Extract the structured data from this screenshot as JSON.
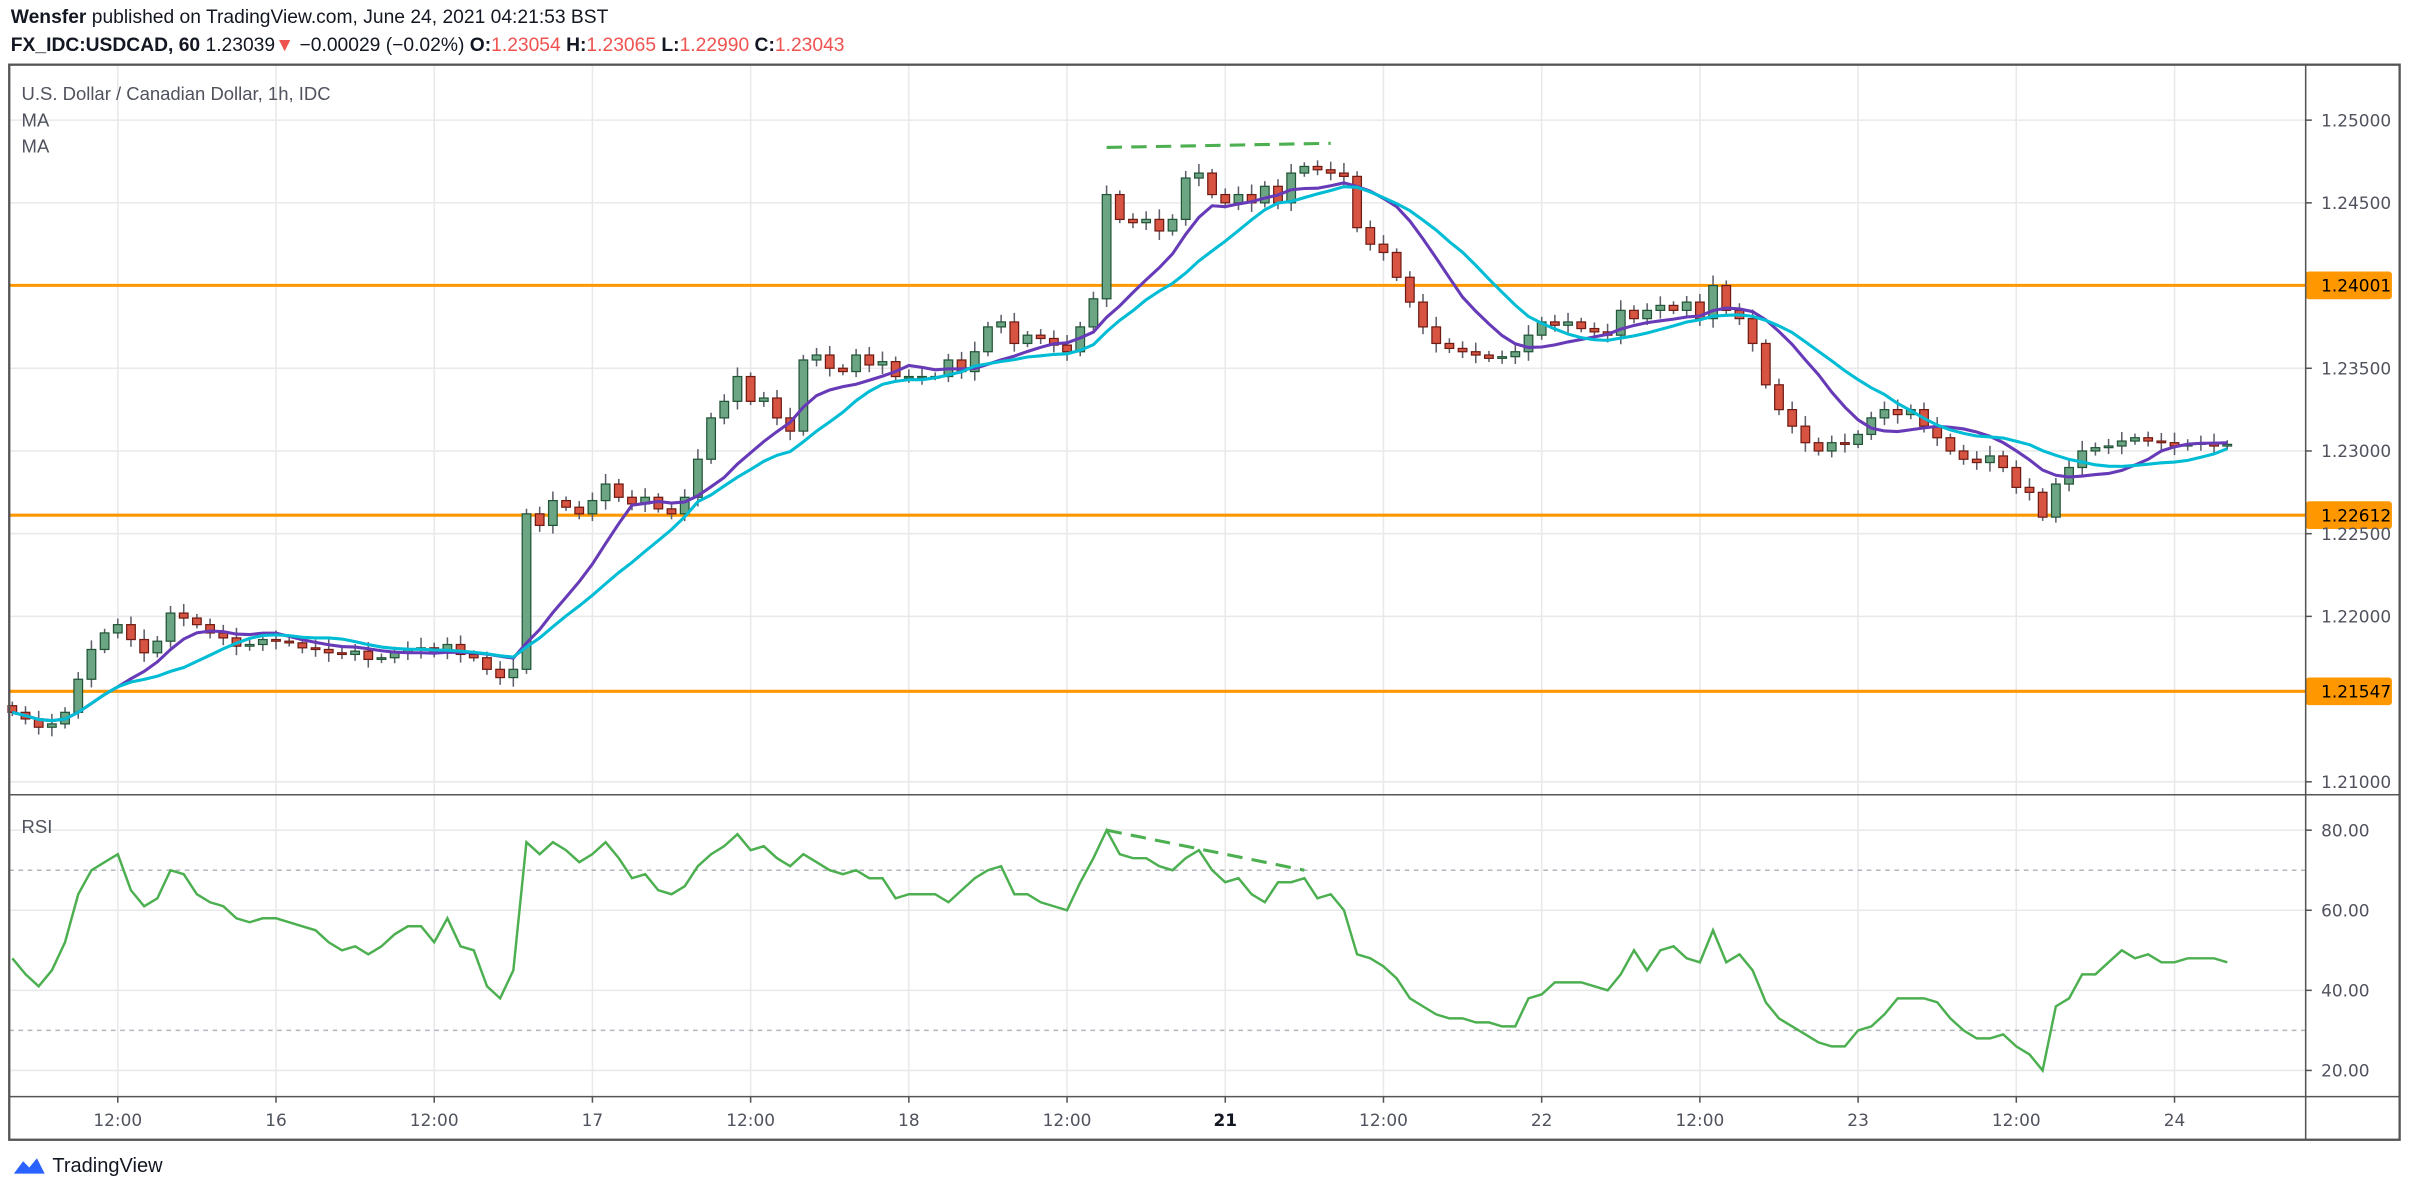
{
  "header": {
    "author": "Wensfer",
    "published": "published on TradingView.com, June 24, 2021 04:21:53 BST",
    "symbol": "FX_IDC:USDCAD, 60",
    "last": "1.23039",
    "change": "−0.00029 (−0.02%)",
    "o_label": "O:",
    "o": "1.23054",
    "h_label": "H:",
    "h": "1.23065",
    "l_label": "L:",
    "l": "1.22990",
    "c_label": "C:",
    "c": "1.23043",
    "direction_icon": "triangle-down-icon"
  },
  "legend": {
    "title": "U.S. Dollar / Canadian Dollar, 1h, IDC",
    "ma1": "MA",
    "ma2": "MA",
    "rsi": "RSI"
  },
  "footer": {
    "brand": "TradingView",
    "logo_icon": "tradingview-logo-icon"
  },
  "colors": {
    "up": "#6ba583",
    "up_border": "#225437",
    "down": "#d75442",
    "down_border": "#6f1b13",
    "ma_fast": "#673ab7",
    "ma_slow": "#00bcd4",
    "level": "#ff9800",
    "rsi": "#4caf50",
    "trendline": "#4caf50"
  },
  "chart_data": [
    {
      "type": "candlestick",
      "title": "U.S. Dollar / Canadian Dollar, 1h, IDC",
      "ylim": [
        1.2075,
        1.2535
      ],
      "yticks": [
        "1.25000",
        "1.24500",
        "1.23500",
        "1.23000",
        "1.22500",
        "1.22000",
        "1.21000"
      ],
      "ytick_values": [
        1.25,
        1.245,
        1.235,
        1.23,
        1.225,
        1.22,
        1.21
      ],
      "xticks": [
        "12:00",
        "16",
        "12:00",
        "17",
        "12:00",
        "18",
        "12:00",
        "21",
        "12:00",
        "22",
        "12:00",
        "23",
        "12:00",
        "24"
      ],
      "bold_xtick": "21",
      "grid": true,
      "levels": [
        {
          "value": 1.24001,
          "label": "1.24001"
        },
        {
          "value": 1.22612,
          "label": "1.22612"
        },
        {
          "value": 1.21547,
          "label": "1.21547"
        }
      ],
      "trendline": {
        "from": [
          83,
          1.24835
        ],
        "to": [
          100,
          1.2486
        ],
        "style": "dashed"
      },
      "series": [
        {
          "name": "MA",
          "type": "line"
        },
        {
          "name": "MA",
          "type": "line"
        }
      ],
      "closes": [
        1.2142,
        1.2138,
        1.2133,
        1.2135,
        1.2142,
        1.2162,
        1.218,
        1.219,
        1.2195,
        1.2186,
        1.2178,
        1.2185,
        1.2202,
        1.2199,
        1.2195,
        1.219,
        1.2187,
        1.2182,
        1.2183,
        1.2186,
        1.2185,
        1.2184,
        1.2181,
        1.218,
        1.2178,
        1.2177,
        1.2179,
        1.2174,
        1.2175,
        1.2178,
        1.218,
        1.2181,
        1.2178,
        1.2183,
        1.2177,
        1.2175,
        1.2168,
        1.2163,
        1.2168,
        1.2262,
        1.2255,
        1.227,
        1.2266,
        1.2262,
        1.227,
        1.228,
        1.2272,
        1.2268,
        1.2272,
        1.2265,
        1.2262,
        1.2272,
        1.2295,
        1.232,
        1.233,
        1.2345,
        1.233,
        1.2332,
        1.232,
        1.2312,
        1.2355,
        1.2358,
        1.235,
        1.2348,
        1.2358,
        1.2352,
        1.2354,
        1.2345,
        1.2345,
        1.2345,
        1.2345,
        1.2355,
        1.2348,
        1.236,
        1.2375,
        1.2378,
        1.2365,
        1.237,
        1.2368,
        1.2364,
        1.236,
        1.2375,
        1.2392,
        1.2455,
        1.244,
        1.2438,
        1.244,
        1.2433,
        1.244,
        1.2465,
        1.2468,
        1.2455,
        1.245,
        1.2455,
        1.245,
        1.246,
        1.245,
        1.2468,
        1.2472,
        1.247,
        1.2468,
        1.2466,
        1.2435,
        1.2425,
        1.242,
        1.2405,
        1.239,
        1.2375,
        1.2365,
        1.2362,
        1.236,
        1.2358,
        1.2356,
        1.2357,
        1.236,
        1.237,
        1.2378,
        1.2376,
        1.2378,
        1.2374,
        1.2372,
        1.237,
        1.2385,
        1.238,
        1.2385,
        1.2388,
        1.2385,
        1.239,
        1.238,
        1.24,
        1.2385,
        1.238,
        1.2365,
        1.234,
        1.2325,
        1.2315,
        1.2305,
        1.23,
        1.2305,
        1.2304,
        1.231,
        1.232,
        1.2325,
        1.2322,
        1.2325,
        1.2315,
        1.2308,
        1.23,
        1.2295,
        1.2293,
        1.2297,
        1.229,
        1.2278,
        1.2275,
        1.226,
        1.228,
        1.229,
        1.23,
        1.2302,
        1.2303,
        1.2306,
        1.2308,
        1.2306,
        1.2305,
        1.2303,
        1.2304,
        1.2305,
        1.2303,
        1.2304
      ]
    },
    {
      "type": "line",
      "title": "RSI",
      "ylim": [
        12,
        90
      ],
      "yticks": [
        "80.00",
        "60.00",
        "40.00",
        "20.00"
      ],
      "ytick_values": [
        80,
        60,
        40,
        20
      ],
      "bands": [
        70,
        30
      ],
      "trendline": {
        "from": [
          83,
          80
        ],
        "to": [
          98,
          70
        ],
        "style": "dashed"
      },
      "values": [
        48,
        44,
        41,
        45,
        52,
        64,
        70,
        72,
        74,
        65,
        61,
        63,
        70,
        69,
        64,
        62,
        61,
        58,
        57,
        58,
        58,
        57,
        56,
        55,
        52,
        50,
        51,
        49,
        51,
        54,
        56,
        56,
        52,
        58,
        51,
        50,
        41,
        38,
        45,
        77,
        74,
        77,
        75,
        72,
        74,
        77,
        73,
        68,
        69,
        65,
        64,
        66,
        71,
        74,
        76,
        79,
        75,
        76,
        73,
        71,
        74,
        72,
        70,
        69,
        70,
        68,
        68,
        63,
        64,
        64,
        64,
        62,
        65,
        68,
        70,
        71,
        64,
        64,
        62,
        61,
        60,
        67,
        73,
        80,
        74,
        73,
        73,
        71,
        70,
        73,
        75,
        70,
        67,
        68,
        64,
        62,
        67,
        67,
        68,
        63,
        64,
        60,
        49,
        48,
        46,
        43,
        38,
        36,
        34,
        33,
        33,
        32,
        32,
        31,
        31,
        38,
        39,
        42,
        42,
        42,
        41,
        40,
        44,
        50,
        45,
        50,
        51,
        48,
        47,
        55,
        47,
        49,
        45,
        37,
        33,
        31,
        29,
        27,
        26,
        26,
        30,
        31,
        34,
        38,
        38,
        38,
        37,
        33,
        30,
        28,
        28,
        29,
        26,
        24,
        20,
        36,
        38,
        44,
        44,
        47,
        50,
        48,
        49,
        47,
        47,
        48,
        48,
        48,
        47
      ]
    }
  ]
}
